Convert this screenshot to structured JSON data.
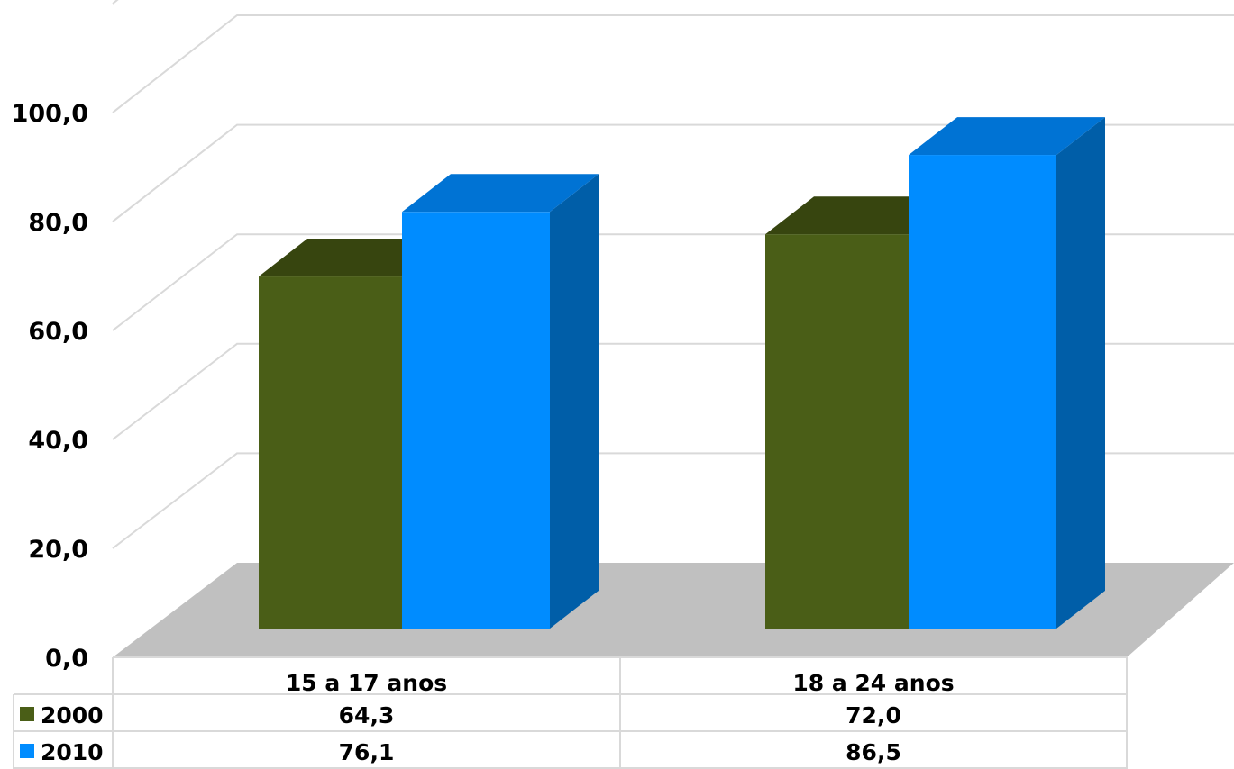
{
  "chart_data": {
    "type": "bar",
    "categories": [
      "15 a 17 anos",
      "18 a 24 anos"
    ],
    "series": [
      {
        "name": "2000",
        "values": [
          64.3,
          72.0
        ],
        "labels": [
          "64,3",
          "72,0"
        ],
        "color": "#4a5e17",
        "top_color": "#37450f"
      },
      {
        "name": "2010",
        "values": [
          76.1,
          86.5
        ],
        "labels": [
          "76,1",
          "86,5"
        ],
        "color": "#008cff",
        "top_color": "#0073d4",
        "side_color": "#005ea8"
      }
    ],
    "y_ticks": [
      "0,0",
      "20,0",
      "40,0",
      "60,0",
      "80,0",
      "100,0"
    ],
    "ylim": [
      0,
      100
    ],
    "grid": true,
    "data_table": true,
    "floor_color": "#c0c0c0"
  }
}
